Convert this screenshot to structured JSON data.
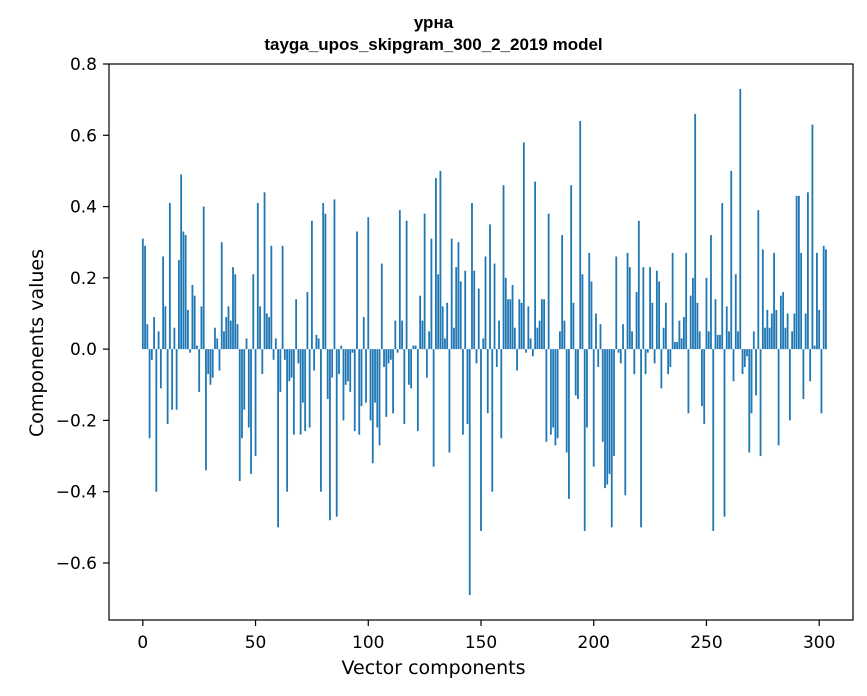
{
  "chart_data": {
    "type": "bar",
    "title": "урна",
    "subtitle": "tayga_upos_skipgram_300_2_2019 model",
    "xlabel": "Vector components",
    "ylabel": "Components values",
    "xlim": [
      -15,
      315
    ],
    "ylim": [
      -0.76,
      0.8
    ],
    "x_ticks": [
      0,
      50,
      100,
      150,
      200,
      250,
      300
    ],
    "y_ticks": [
      -0.6,
      -0.4,
      -0.2,
      0.0,
      0.2,
      0.4,
      0.6,
      0.8
    ],
    "y_tick_labels": [
      "−0.6",
      "−0.4",
      "−0.2",
      "0.0",
      "0.2",
      "0.4",
      "0.6",
      "0.8"
    ],
    "grid": false,
    "bar_color": "#1f77b4",
    "values": [
      0.31,
      0.29,
      0.07,
      -0.25,
      -0.03,
      0.09,
      -0.4,
      0.05,
      -0.11,
      0.26,
      0.12,
      -0.21,
      0.41,
      -0.17,
      0.06,
      -0.17,
      0.25,
      0.49,
      0.33,
      0.32,
      0.11,
      -0.01,
      0.18,
      0.15,
      0.01,
      -0.12,
      0.12,
      0.4,
      -0.34,
      -0.07,
      -0.1,
      -0.08,
      0.06,
      0.03,
      -0.06,
      0.3,
      0.05,
      0.09,
      0.12,
      0.08,
      0.23,
      0.21,
      0.07,
      -0.37,
      -0.25,
      -0.17,
      0.03,
      -0.22,
      -0.35,
      0.21,
      -0.3,
      0.41,
      0.12,
      -0.07,
      0.44,
      0.1,
      0.09,
      0.29,
      -0.03,
      0.03,
      -0.5,
      -0.12,
      0.29,
      -0.03,
      -0.4,
      -0.09,
      -0.08,
      -0.24,
      0.14,
      -0.04,
      -0.24,
      -0.15,
      -0.23,
      0.16,
      -0.22,
      0.36,
      -0.06,
      0.04,
      0.03,
      -0.4,
      0.41,
      0.38,
      -0.14,
      -0.48,
      -0.08,
      0.42,
      -0.47,
      -0.07,
      0.01,
      -0.2,
      -0.1,
      -0.09,
      -0.12,
      -0.01,
      -0.23,
      0.33,
      -0.24,
      -0.16,
      0.09,
      -0.15,
      0.37,
      -0.2,
      -0.32,
      -0.15,
      -0.22,
      -0.27,
      0.24,
      -0.05,
      -0.19,
      -0.04,
      -0.03,
      -0.18,
      0.08,
      -0.01,
      0.39,
      0.08,
      -0.21,
      0.36,
      -0.1,
      -0.11,
      0.01,
      0.01,
      -0.23,
      0.15,
      0.08,
      0.38,
      -0.08,
      0.05,
      0.31,
      -0.33,
      0.48,
      0.21,
      0.5,
      0.12,
      0.03,
      0.13,
      -0.29,
      0.31,
      0.06,
      0.23,
      0.3,
      0.19,
      -0.24,
      0.22,
      -0.21,
      -0.69,
      0.41,
      0.22,
      -0.04,
      0.17,
      -0.51,
      0.03,
      0.26,
      -0.18,
      0.35,
      -0.4,
      0.24,
      -0.05,
      0.08,
      -0.25,
      0.46,
      0.2,
      0.14,
      0.14,
      0.18,
      0.06,
      -0.06,
      0.14,
      0.13,
      0.58,
      -0.01,
      0.12,
      0.03,
      -0.02,
      0.47,
      0.06,
      0.08,
      0.14,
      0.14,
      -0.26,
      0.38,
      -0.24,
      -0.22,
      -0.27,
      -0.25,
      0.05,
      0.32,
      0.08,
      -0.29,
      -0.42,
      0.46,
      0.13,
      -0.13,
      -0.14,
      0.64,
      0.21,
      -0.51,
      -0.22,
      0.27,
      0.19,
      -0.33,
      0.1,
      -0.05,
      0.07,
      -0.26,
      -0.39,
      -0.38,
      -0.35,
      -0.5,
      -0.3,
      0.26,
      -0.01,
      -0.04,
      0.07,
      -0.41,
      0.27,
      0.23,
      0.05,
      -0.07,
      0.16,
      0.36,
      -0.5,
      0.23,
      -0.07,
      -0.01,
      0.23,
      0.13,
      -0.04,
      0.22,
      0.19,
      -0.11,
      0.06,
      0.13,
      -0.07,
      -0.05,
      0.27,
      0.02,
      0.02,
      0.08,
      0.03,
      0.09,
      0.27,
      -0.18,
      0.15,
      0.2,
      0.66,
      0.13,
      0.05,
      -0.16,
      -0.21,
      0.2,
      0.05,
      0.32,
      -0.51,
      0.14,
      0.04,
      0.04,
      0.41,
      -0.47,
      0.12,
      0.05,
      0.5,
      -0.09,
      0.21,
      0.05,
      0.73,
      -0.07,
      -0.05,
      -0.02,
      -0.29,
      -0.18,
      0.05,
      -0.13,
      0.39,
      -0.3,
      0.28,
      0.06,
      0.11,
      0.06,
      0.1,
      0.27,
      0.11,
      -0.27,
      0.15,
      0.16,
      0.06,
      0.1,
      -0.2,
      0.05,
      0.1,
      0.43,
      0.43,
      0.27,
      -0.14,
      0.1,
      0.44,
      -0.09,
      0.63,
      0.01,
      0.27,
      0.11,
      -0.18,
      0.29,
      0.28
    ]
  }
}
